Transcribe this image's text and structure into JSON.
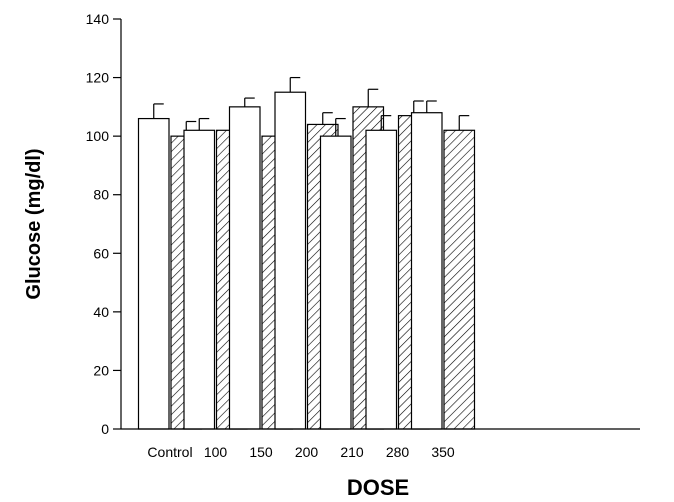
{
  "chart_data": {
    "type": "bar",
    "xlabel": "DOSE",
    "ylabel": "Glucose (mg/dl)",
    "ylim": [
      0,
      140
    ],
    "yticks": [
      0,
      20,
      40,
      60,
      80,
      100,
      120,
      140
    ],
    "categories": [
      "Control",
      "100",
      "150",
      "200",
      "210",
      "280",
      "350"
    ],
    "series": [
      {
        "fill": "white",
        "values": [
          106,
          102,
          110,
          115,
          100,
          102,
          108
        ],
        "errors": [
          5,
          4,
          3,
          5,
          6,
          5,
          4
        ]
      },
      {
        "fill": "hatched",
        "values": [
          100,
          102,
          100,
          104,
          110,
          107,
          102
        ],
        "errors": [
          5,
          6,
          5,
          4,
          6,
          5,
          5
        ]
      }
    ],
    "grid": false,
    "legend": "none"
  }
}
